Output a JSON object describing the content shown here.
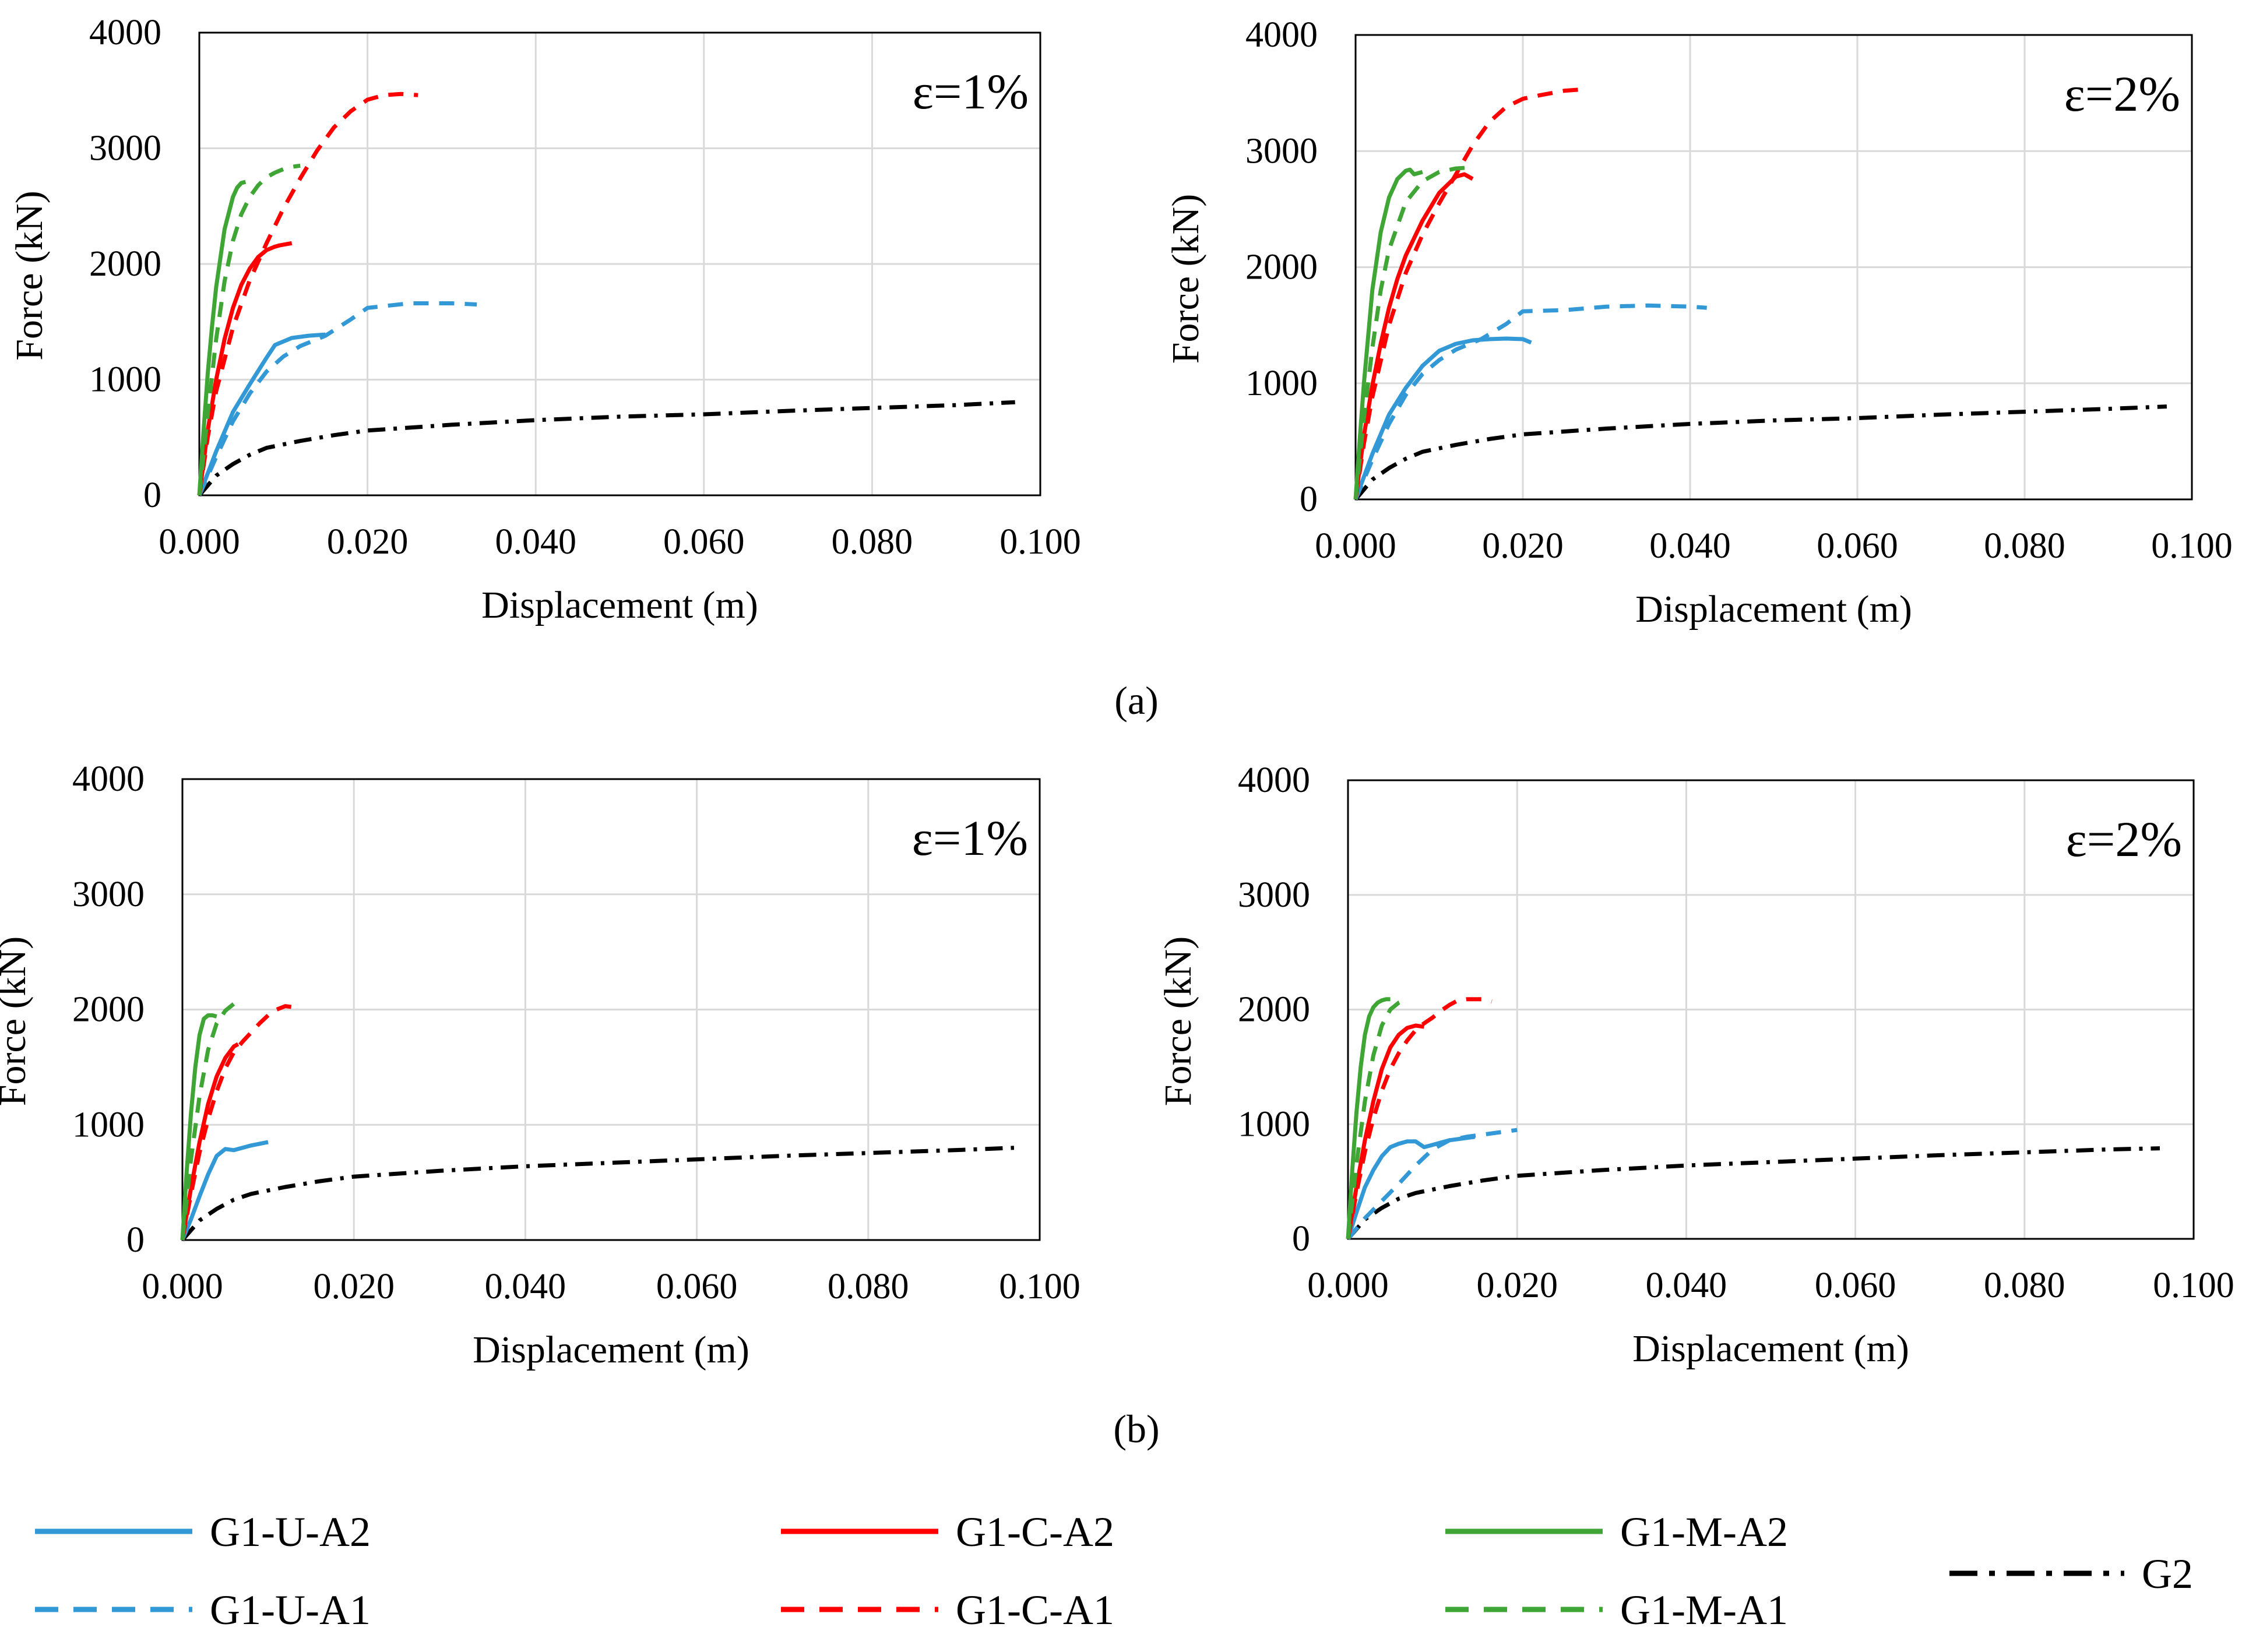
{
  "panel_labels": [
    "(a)",
    "(b)"
  ],
  "legend": [
    {
      "key": "G1-U-A2",
      "label": "G1-U-A2",
      "color": "#3399d6",
      "dash": "solid"
    },
    {
      "key": "G1-U-A1",
      "label": "G1-U-A1",
      "color": "#3399d6",
      "dash": "dashed"
    },
    {
      "key": "G1-C-A2",
      "label": "G1-C-A2",
      "color": "#ff0000",
      "dash": "solid"
    },
    {
      "key": "G1-C-A1",
      "label": "G1-C-A1",
      "color": "#ff0000",
      "dash": "dashed"
    },
    {
      "key": "G1-M-A2",
      "label": "G1-M-A2",
      "color": "#3fa535",
      "dash": "solid"
    },
    {
      "key": "G1-M-A1",
      "label": "G1-M-A1",
      "color": "#3fa535",
      "dash": "dashed"
    },
    {
      "key": "G2",
      "label": "G2",
      "color": "#000000",
      "dash": "dashdot"
    }
  ],
  "chart_data": [
    {
      "type": "line",
      "panel": "(a)",
      "annotation": "ε=1%",
      "xlabel": "Displacement  (m)",
      "ylabel": "Force (kN)",
      "xlim": [
        0,
        0.1
      ],
      "ylim": [
        0,
        4000
      ],
      "xticks": [
        "0.000",
        "0.020",
        "0.040",
        "0.060",
        "0.080",
        "0.100"
      ],
      "yticks": [
        "0",
        "1000",
        "2000",
        "3000",
        "4000"
      ],
      "grid": true,
      "series": [
        {
          "name": "G2",
          "x": [
            0,
            0.002,
            0.004,
            0.006,
            0.008,
            0.012,
            0.016,
            0.02,
            0.03,
            0.04,
            0.05,
            0.06,
            0.07,
            0.08,
            0.09,
            0.097
          ],
          "y": [
            0,
            170,
            270,
            350,
            410,
            470,
            520,
            560,
            610,
            650,
            680,
            700,
            730,
            755,
            780,
            805
          ]
        },
        {
          "name": "G1-U-A1",
          "x": [
            0,
            0.002,
            0.004,
            0.006,
            0.008,
            0.01,
            0.012,
            0.015,
            0.018,
            0.02,
            0.025,
            0.03,
            0.033
          ],
          "y": [
            0,
            330,
            640,
            880,
            1070,
            1200,
            1290,
            1380,
            1520,
            1620,
            1660,
            1660,
            1650
          ]
        },
        {
          "name": "G1-U-A2",
          "x": [
            0,
            0.002,
            0.004,
            0.006,
            0.008,
            0.009,
            0.011,
            0.013,
            0.015
          ],
          "y": [
            0,
            380,
            720,
            960,
            1190,
            1300,
            1360,
            1380,
            1390
          ]
        },
        {
          "name": "G1-C-A1",
          "x": [
            0,
            0.001,
            0.002,
            0.004,
            0.006,
            0.008,
            0.01,
            0.012,
            0.014,
            0.016,
            0.018,
            0.02,
            0.022,
            0.024,
            0.026
          ],
          "y": [
            0,
            500,
            900,
            1450,
            1860,
            2180,
            2480,
            2740,
            2980,
            3180,
            3320,
            3420,
            3460,
            3470,
            3460
          ]
        },
        {
          "name": "G1-C-A2",
          "x": [
            0,
            0.001,
            0.002,
            0.003,
            0.004,
            0.005,
            0.006,
            0.007,
            0.008,
            0.009,
            0.0095,
            0.011
          ],
          "y": [
            0,
            560,
            1000,
            1350,
            1620,
            1820,
            1960,
            2060,
            2120,
            2150,
            2160,
            2180
          ]
        },
        {
          "name": "G1-M-A1",
          "x": [
            0,
            0.001,
            0.002,
            0.003,
            0.004,
            0.005,
            0.006,
            0.007,
            0.008,
            0.009,
            0.01,
            0.011,
            0.012
          ],
          "y": [
            0,
            700,
            1350,
            1850,
            2200,
            2430,
            2580,
            2680,
            2750,
            2790,
            2820,
            2840,
            2850
          ]
        },
        {
          "name": "G1-M-A2",
          "x": [
            0,
            0.0005,
            0.001,
            0.0015,
            0.002,
            0.003,
            0.004,
            0.0045,
            0.005,
            0.0055
          ],
          "y": [
            0,
            550,
            1050,
            1450,
            1800,
            2300,
            2580,
            2660,
            2700,
            2710
          ]
        }
      ]
    },
    {
      "type": "line",
      "panel": "(a)",
      "annotation": "ε=2%",
      "xlabel": "Displacement  (m)",
      "ylabel": "Force (kN)",
      "xlim": [
        0,
        0.1
      ],
      "ylim": [
        0,
        4000
      ],
      "xticks": [
        "0.000",
        "0.020",
        "0.040",
        "0.060",
        "0.080",
        "0.100"
      ],
      "yticks": [
        "0",
        "1000",
        "2000",
        "3000",
        "4000"
      ],
      "grid": true,
      "series": [
        {
          "name": "G2",
          "x": [
            0,
            0.002,
            0.004,
            0.006,
            0.008,
            0.012,
            0.016,
            0.02,
            0.03,
            0.04,
            0.05,
            0.06,
            0.07,
            0.08,
            0.09,
            0.097
          ],
          "y": [
            0,
            170,
            270,
            350,
            410,
            470,
            520,
            560,
            610,
            650,
            680,
            700,
            730,
            755,
            780,
            800
          ]
        },
        {
          "name": "G1-U-A1",
          "x": [
            0,
            0.002,
            0.004,
            0.006,
            0.008,
            0.01,
            0.012,
            0.015,
            0.018,
            0.02,
            0.025,
            0.03,
            0.035,
            0.04,
            0.042
          ],
          "y": [
            0,
            340,
            650,
            900,
            1080,
            1200,
            1290,
            1380,
            1510,
            1620,
            1630,
            1660,
            1670,
            1660,
            1650
          ]
        },
        {
          "name": "G1-U-A2",
          "x": [
            0,
            0.002,
            0.004,
            0.006,
            0.008,
            0.01,
            0.012,
            0.014,
            0.016,
            0.018,
            0.02,
            0.021
          ],
          "y": [
            0,
            390,
            730,
            960,
            1150,
            1280,
            1340,
            1370,
            1380,
            1385,
            1380,
            1350
          ]
        },
        {
          "name": "G1-C-A1",
          "x": [
            0,
            0.001,
            0.002,
            0.004,
            0.006,
            0.008,
            0.01,
            0.012,
            0.014,
            0.016,
            0.018,
            0.02,
            0.022,
            0.025,
            0.027
          ],
          "y": [
            0,
            480,
            880,
            1500,
            1950,
            2280,
            2550,
            2800,
            3050,
            3250,
            3380,
            3450,
            3480,
            3520,
            3530
          ]
        },
        {
          "name": "G1-C-A2",
          "x": [
            0,
            0.001,
            0.002,
            0.003,
            0.004,
            0.005,
            0.006,
            0.008,
            0.01,
            0.012,
            0.013,
            0.014
          ],
          "y": [
            0,
            550,
            980,
            1340,
            1650,
            1900,
            2100,
            2400,
            2640,
            2780,
            2800,
            2760
          ]
        },
        {
          "name": "G1-M-A1",
          "x": [
            0,
            0.001,
            0.002,
            0.003,
            0.004,
            0.006,
            0.008,
            0.01,
            0.012,
            0.014
          ],
          "y": [
            0,
            700,
            1300,
            1800,
            2150,
            2560,
            2740,
            2820,
            2850,
            2860
          ]
        },
        {
          "name": "G1-M-A2",
          "x": [
            0,
            0.0005,
            0.001,
            0.002,
            0.003,
            0.004,
            0.005,
            0.006,
            0.0065,
            0.007,
            0.008
          ],
          "y": [
            0,
            520,
            1000,
            1800,
            2300,
            2600,
            2760,
            2830,
            2840,
            2800,
            2820
          ]
        }
      ]
    },
    {
      "type": "line",
      "panel": "(b)",
      "annotation": "ε=1%",
      "xlabel": "Displacement  (m)",
      "ylabel": "Force (kN)",
      "xlim": [
        0,
        0.1
      ],
      "ylim": [
        0,
        4000
      ],
      "xticks": [
        "0.000",
        "0.020",
        "0.040",
        "0.060",
        "0.080",
        "0.100"
      ],
      "yticks": [
        "0",
        "1000",
        "2000",
        "3000",
        "4000"
      ],
      "grid": true,
      "series": [
        {
          "name": "G2",
          "x": [
            0,
            0.002,
            0.004,
            0.006,
            0.008,
            0.012,
            0.016,
            0.02,
            0.03,
            0.04,
            0.05,
            0.06,
            0.07,
            0.08,
            0.09,
            0.097
          ],
          "y": [
            0,
            170,
            270,
            350,
            400,
            460,
            510,
            550,
            600,
            640,
            670,
            700,
            730,
            755,
            780,
            800
          ]
        },
        {
          "name": "G1-U-A2",
          "x": [
            0,
            0.001,
            0.002,
            0.003,
            0.004,
            0.005,
            0.006,
            0.008,
            0.01
          ],
          "y": [
            0,
            180,
            380,
            570,
            730,
            790,
            780,
            820,
            850
          ]
        },
        {
          "name": "G1-C-A1",
          "x": [
            0,
            0.001,
            0.002,
            0.003,
            0.004,
            0.005,
            0.006,
            0.007,
            0.008,
            0.009,
            0.01,
            0.011,
            0.012,
            0.013
          ],
          "y": [
            0,
            400,
            760,
            1050,
            1290,
            1490,
            1630,
            1720,
            1800,
            1880,
            1950,
            2000,
            2030,
            2020
          ]
        },
        {
          "name": "G1-C-A2",
          "x": [
            0,
            0.001,
            0.002,
            0.003,
            0.004,
            0.005,
            0.006,
            0.0065
          ],
          "y": [
            0,
            450,
            850,
            1180,
            1420,
            1580,
            1680,
            1700
          ]
        },
        {
          "name": "G1-M-A1",
          "x": [
            0,
            0.001,
            0.002,
            0.003,
            0.004,
            0.005,
            0.006,
            0.007
          ],
          "y": [
            0,
            700,
            1250,
            1650,
            1880,
            1990,
            2050,
            2080
          ]
        },
        {
          "name": "G1-M-A2",
          "x": [
            0,
            0.0005,
            0.001,
            0.0015,
            0.002,
            0.0025,
            0.003,
            0.0035,
            0.004
          ],
          "y": [
            0,
            600,
            1100,
            1500,
            1780,
            1920,
            1950,
            1950,
            1940
          ]
        }
      ]
    },
    {
      "type": "line",
      "panel": "(b)",
      "annotation": "ε=2%",
      "xlabel": "Displacement  (m)",
      "ylabel": "Force (kN)",
      "xlim": [
        0,
        0.1
      ],
      "ylim": [
        0,
        4000
      ],
      "xticks": [
        "0.000",
        "0.020",
        "0.040",
        "0.060",
        "0.080",
        "0.100"
      ],
      "yticks": [
        "0",
        "1000",
        "2000",
        "3000",
        "4000"
      ],
      "grid": true,
      "series": [
        {
          "name": "G2",
          "x": [
            0,
            0.002,
            0.004,
            0.006,
            0.008,
            0.012,
            0.016,
            0.02,
            0.03,
            0.04,
            0.05,
            0.06,
            0.07,
            0.08,
            0.09,
            0.096
          ],
          "y": [
            0,
            170,
            270,
            350,
            400,
            460,
            510,
            550,
            600,
            640,
            670,
            700,
            730,
            755,
            780,
            790
          ]
        },
        {
          "name": "G1-U-A1",
          "x": [
            0,
            0.002,
            0.004,
            0.006,
            0.008,
            0.01,
            0.012,
            0.014,
            0.016,
            0.018,
            0.02
          ],
          "y": [
            0,
            180,
            330,
            480,
            640,
            780,
            860,
            890,
            910,
            930,
            950
          ]
        },
        {
          "name": "G1-U-A2",
          "x": [
            0,
            0.001,
            0.002,
            0.003,
            0.004,
            0.005,
            0.006,
            0.007,
            0.008,
            0.009,
            0.01,
            0.012,
            0.014,
            0.015
          ],
          "y": [
            0,
            230,
            450,
            600,
            720,
            800,
            830,
            850,
            850,
            800,
            820,
            860,
            880,
            890
          ]
        },
        {
          "name": "G1-C-A1",
          "x": [
            0,
            0.001,
            0.002,
            0.003,
            0.004,
            0.005,
            0.006,
            0.007,
            0.008,
            0.009,
            0.01,
            0.011,
            0.012,
            0.013,
            0.014,
            0.016,
            0.017
          ],
          "y": [
            0,
            400,
            760,
            1050,
            1290,
            1480,
            1620,
            1730,
            1820,
            1880,
            1930,
            1990,
            2040,
            2080,
            2090,
            2090,
            2070
          ]
        },
        {
          "name": "G1-C-A2",
          "x": [
            0,
            0.001,
            0.002,
            0.003,
            0.004,
            0.005,
            0.006,
            0.007,
            0.008,
            0.009
          ],
          "y": [
            0,
            450,
            860,
            1200,
            1480,
            1670,
            1780,
            1840,
            1860,
            1850
          ]
        },
        {
          "name": "G1-M-A1",
          "x": [
            0,
            0.001,
            0.002,
            0.003,
            0.004,
            0.005,
            0.006,
            0.007
          ],
          "y": [
            0,
            650,
            1200,
            1600,
            1860,
            2000,
            2060,
            2090
          ]
        },
        {
          "name": "G1-M-A2",
          "x": [
            0,
            0.0005,
            0.001,
            0.0015,
            0.002,
            0.0025,
            0.003,
            0.0035,
            0.004,
            0.0045,
            0.005
          ],
          "y": [
            0,
            600,
            1100,
            1500,
            1780,
            1940,
            2020,
            2060,
            2080,
            2090,
            2090
          ]
        }
      ]
    }
  ]
}
